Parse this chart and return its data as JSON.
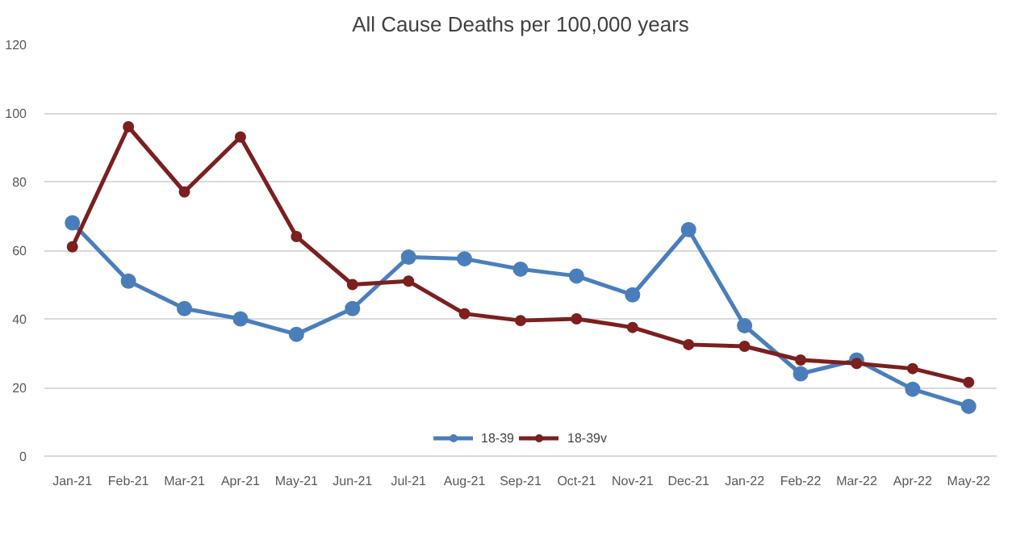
{
  "chart_data": {
    "type": "line",
    "title": "All Cause Deaths per 100,000 years",
    "categories": [
      "Jan-21",
      "Feb-21",
      "Mar-21",
      "Apr-21",
      "May-21",
      "Jun-21",
      "Jul-21",
      "Aug-21",
      "Sep-21",
      "Oct-21",
      "Nov-21",
      "Dec-21",
      "Jan-22",
      "Feb-22",
      "Mar-22",
      "Apr-22",
      "May-22"
    ],
    "series": [
      {
        "name": "18-39",
        "color": "#4a7ebb",
        "values": [
          68,
          51,
          43,
          40,
          35.5,
          43,
          58,
          57.5,
          54.5,
          52.5,
          47,
          66,
          38,
          24,
          28,
          19.5,
          14.5
        ]
      },
      {
        "name": "18-39v",
        "color": "#7b1f1f",
        "values": [
          61,
          96,
          77,
          93,
          64,
          50,
          51,
          41.5,
          39.5,
          40,
          37.5,
          32.5,
          32,
          28,
          27,
          25.5,
          21.5
        ]
      }
    ],
    "ylim": [
      0,
      120
    ],
    "yticks": [
      0,
      20,
      40,
      60,
      80,
      100,
      120
    ],
    "grid": "y",
    "legend": "bottom",
    "marker": "circle",
    "line_style": "solid"
  }
}
